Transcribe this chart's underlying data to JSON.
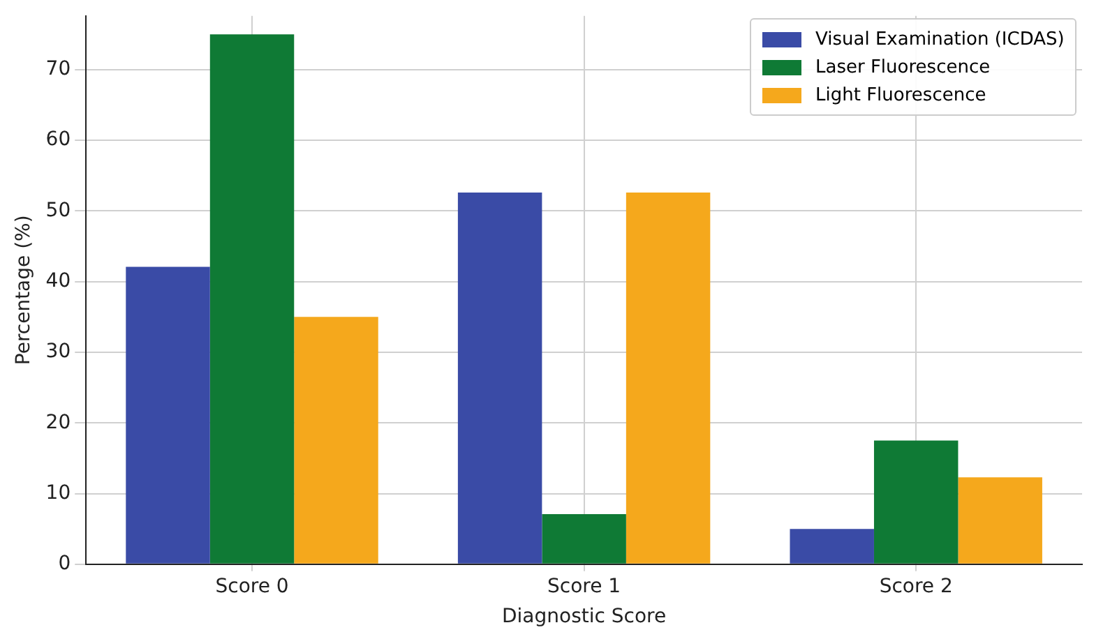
{
  "chart_data": {
    "type": "bar",
    "xlabel": "Diagnostic Score",
    "ylabel": "Percentage (%)",
    "categories": [
      "Score 0",
      "Score 1",
      "Score 2"
    ],
    "series": [
      {
        "name": "Visual Examination (ICDAS)",
        "color": "#3a4ba6",
        "values": [
          42.1,
          52.6,
          5.0
        ]
      },
      {
        "name": "Laser Fluorescence",
        "color": "#0f7a35",
        "values": [
          75.0,
          7.1,
          17.5
        ]
      },
      {
        "name": "Light Fluorescence",
        "color": "#f5a81c",
        "values": [
          35.0,
          52.6,
          12.3
        ]
      }
    ],
    "ylim": [
      0,
      77.6
    ],
    "yticks": [
      0,
      10,
      20,
      30,
      40,
      50,
      60,
      70
    ],
    "grid": true,
    "legend": "top right"
  }
}
